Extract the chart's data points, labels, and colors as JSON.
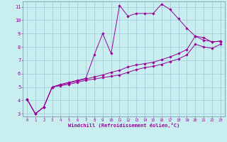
{
  "background_color": "#c8eef0",
  "grid_color": "#a0c8d8",
  "line_color": "#990099",
  "xlabel": "Windchill (Refroidissement éolien,°C)",
  "xlim": [
    -0.5,
    23.5
  ],
  "ylim": [
    2.8,
    11.4
  ],
  "yticks": [
    3,
    4,
    5,
    6,
    7,
    8,
    9,
    10,
    11
  ],
  "xticks": [
    0,
    1,
    2,
    3,
    4,
    5,
    6,
    7,
    8,
    9,
    10,
    11,
    12,
    13,
    14,
    15,
    16,
    17,
    18,
    19,
    20,
    21,
    22,
    23
  ],
  "line1_x": [
    0,
    1,
    2,
    3,
    4,
    5,
    6,
    7,
    8,
    9,
    10,
    11,
    12,
    13,
    14,
    15,
    16,
    17,
    18,
    19,
    20,
    21,
    22,
    23
  ],
  "line1_y": [
    4.1,
    3.0,
    3.5,
    5.0,
    5.2,
    5.35,
    5.5,
    5.65,
    7.4,
    9.0,
    7.5,
    11.1,
    10.3,
    10.5,
    10.5,
    10.5,
    11.2,
    10.8,
    10.1,
    9.4,
    8.8,
    8.5,
    8.4,
    8.4
  ],
  "line2_x": [
    0,
    1,
    2,
    3,
    4,
    5,
    6,
    7,
    8,
    9,
    10,
    11,
    12,
    13,
    14,
    15,
    16,
    17,
    18,
    19,
    20,
    21,
    22,
    23
  ],
  "line2_y": [
    4.1,
    3.0,
    3.5,
    5.0,
    5.15,
    5.3,
    5.45,
    5.6,
    5.75,
    5.9,
    6.1,
    6.25,
    6.5,
    6.65,
    6.75,
    6.85,
    7.05,
    7.25,
    7.5,
    7.8,
    8.8,
    8.7,
    8.35,
    8.45
  ],
  "line3_x": [
    0,
    1,
    2,
    3,
    4,
    5,
    6,
    7,
    8,
    9,
    10,
    11,
    12,
    13,
    14,
    15,
    16,
    17,
    18,
    19,
    20,
    21,
    22,
    23
  ],
  "line3_y": [
    4.1,
    3.0,
    3.5,
    5.0,
    5.1,
    5.2,
    5.35,
    5.5,
    5.6,
    5.7,
    5.8,
    5.9,
    6.1,
    6.3,
    6.45,
    6.55,
    6.7,
    6.9,
    7.1,
    7.4,
    8.2,
    8.0,
    7.9,
    8.2
  ]
}
